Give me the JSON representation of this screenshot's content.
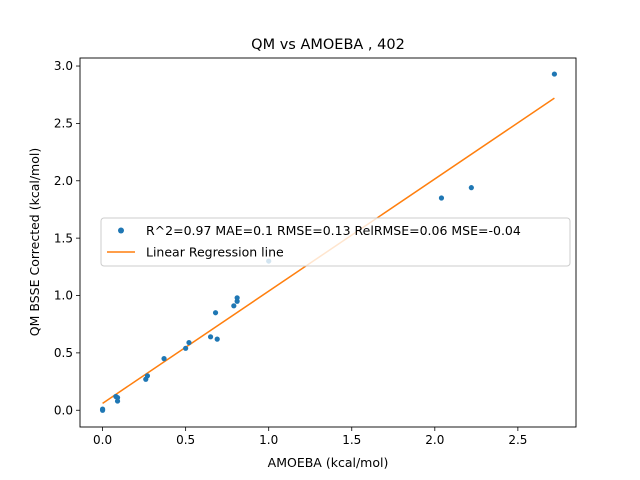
{
  "chart_data": {
    "type": "scatter",
    "title": "QM vs AMOEBA , 402",
    "xlabel": "AMOEBA (kcal/mol)",
    "ylabel": "QM BSSE Corrected (kcal/mol)",
    "xlim": [
      -0.136,
      2.85
    ],
    "ylim": [
      -0.146,
      3.07
    ],
    "xticks": [
      "0.0",
      "0.5",
      "1.0",
      "1.5",
      "2.0",
      "2.5"
    ],
    "yticks": [
      "0.0",
      "0.5",
      "1.0",
      "1.5",
      "2.0",
      "2.5",
      "3.0"
    ],
    "grid": false,
    "legend_placement": "center-left",
    "series": [
      {
        "name": "R^2=0.97 MAE=0.1 RMSE=0.13 RelRMSE=0.06 MSE=-0.04",
        "kind": "scatter",
        "color": "#1f77b4",
        "points": [
          [
            0.0,
            0.0
          ],
          [
            0.0,
            0.01
          ],
          [
            0.09,
            0.11
          ],
          [
            0.09,
            0.08
          ],
          [
            0.08,
            0.12
          ],
          [
            0.26,
            0.27
          ],
          [
            0.27,
            0.3
          ],
          [
            0.37,
            0.45
          ],
          [
            0.5,
            0.54
          ],
          [
            0.52,
            0.59
          ],
          [
            0.65,
            0.64
          ],
          [
            0.69,
            0.62
          ],
          [
            0.68,
            0.85
          ],
          [
            0.79,
            0.91
          ],
          [
            0.81,
            0.95
          ],
          [
            0.81,
            0.98
          ],
          [
            1.0,
            1.3
          ],
          [
            2.04,
            1.85
          ],
          [
            2.22,
            1.94
          ],
          [
            2.72,
            2.93
          ]
        ]
      },
      {
        "name": "Linear Regression line",
        "kind": "line",
        "color": "#ff7f0e",
        "points": [
          [
            0.0,
            0.06
          ],
          [
            2.72,
            2.72
          ]
        ]
      }
    ]
  }
}
